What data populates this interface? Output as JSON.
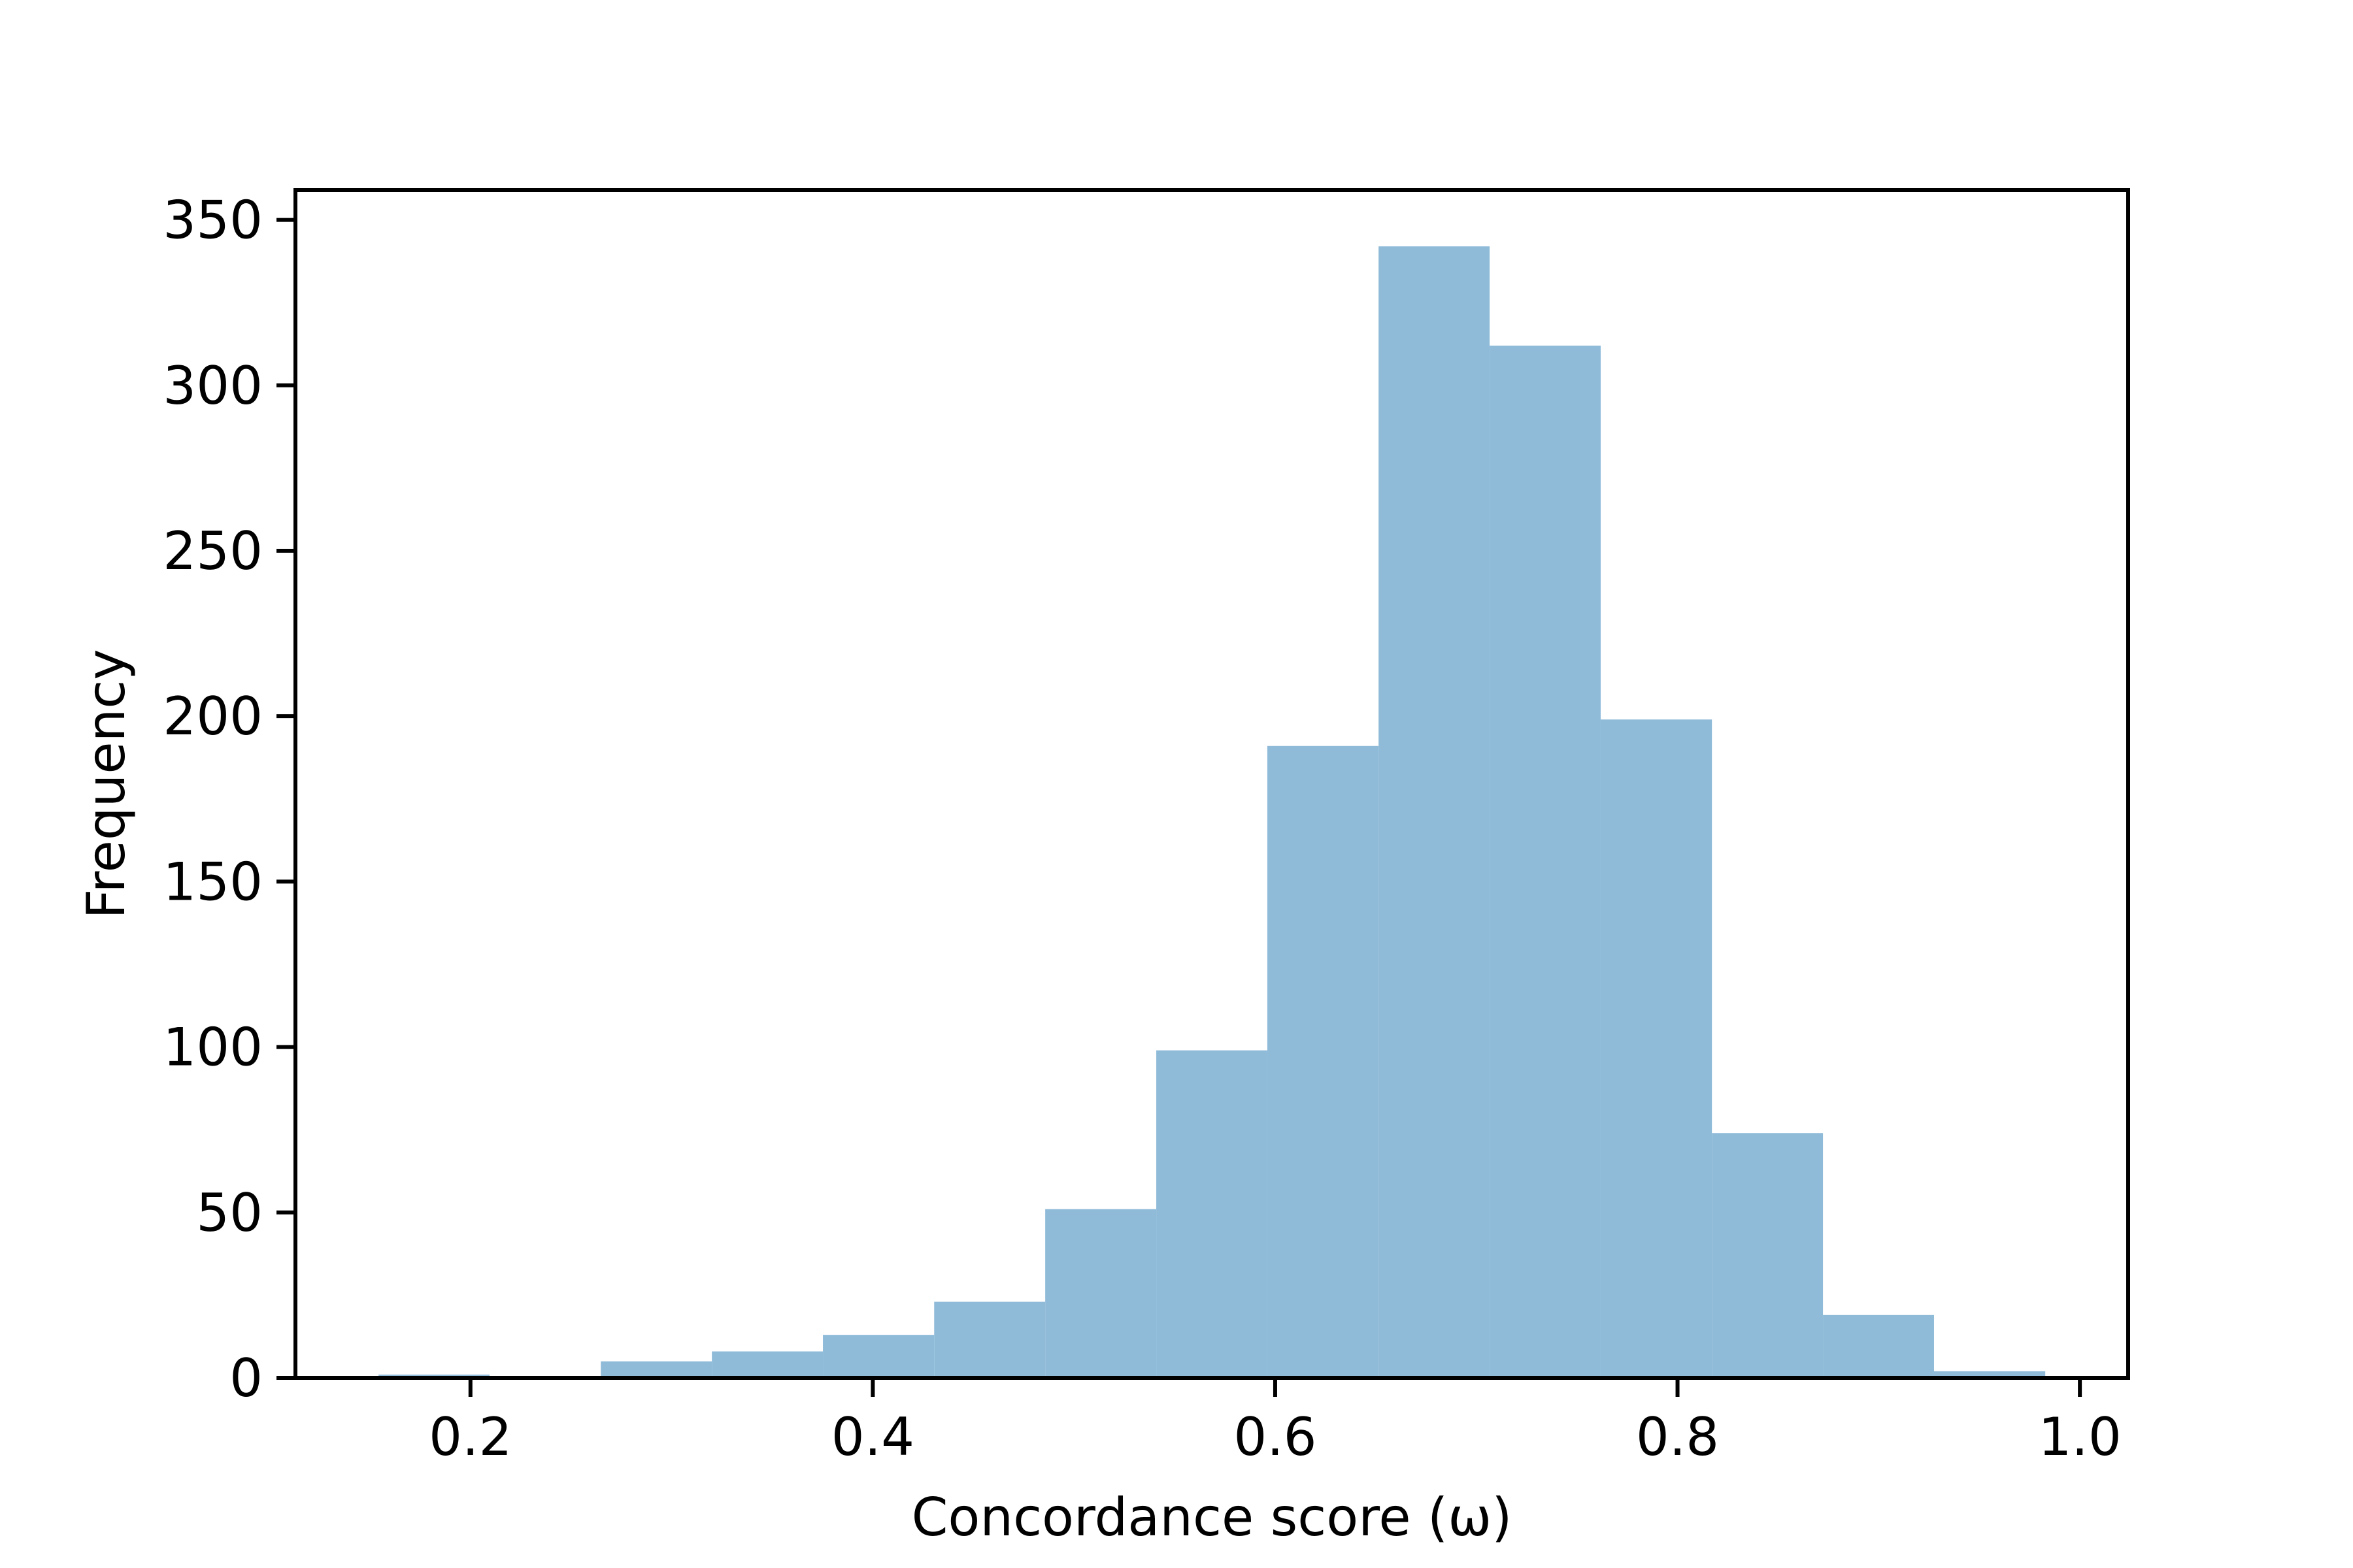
{
  "chart_data": {
    "type": "histogram",
    "xlabel": "Concordance score (ω)",
    "ylabel": "Frequency",
    "bins": [
      0.1543,
      0.2095,
      0.2648,
      0.32,
      0.3752,
      0.4305,
      0.4857,
      0.5409,
      0.5961,
      0.6514,
      0.7066,
      0.7618,
      0.8171,
      0.8723,
      0.9275,
      0.9828
    ],
    "values": [
      1,
      0,
      5,
      8,
      13,
      23,
      51,
      99,
      191,
      342,
      312,
      199,
      74,
      19,
      2
    ],
    "color": "#8fbbd9",
    "xlim": [
      0.113,
      1.024
    ],
    "xticks": [
      0.2,
      0.4,
      0.6,
      0.8,
      {
        "value": 1,
        "label": "1.0"
      }
    ],
    "ylim": [
      0,
      359
    ],
    "yticks": [
      0,
      50,
      100,
      150,
      200,
      250,
      300,
      350
    ]
  }
}
